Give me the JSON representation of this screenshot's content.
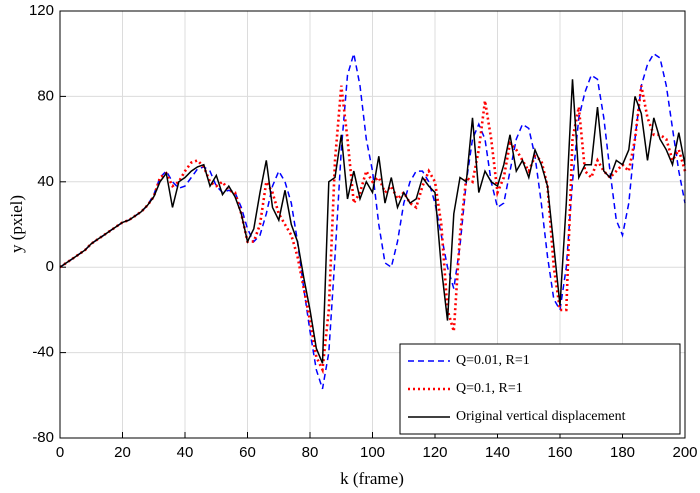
{
  "chart_data": {
    "type": "line",
    "x_label": "k (frame)",
    "y_label": "y (pxiel)",
    "xlim": [
      0,
      200
    ],
    "ylim": [
      -80,
      120
    ],
    "xticks": [
      0,
      20,
      40,
      60,
      80,
      100,
      120,
      140,
      160,
      180,
      200
    ],
    "yticks": [
      -80,
      -40,
      0,
      40,
      80,
      120
    ],
    "grid": true,
    "legend": "lower right",
    "x": [
      0,
      2,
      4,
      6,
      8,
      10,
      12,
      14,
      16,
      18,
      20,
      22,
      24,
      26,
      28,
      30,
      32,
      34,
      36,
      38,
      40,
      42,
      44,
      46,
      48,
      50,
      52,
      54,
      56,
      58,
      60,
      62,
      64,
      66,
      68,
      70,
      72,
      74,
      76,
      78,
      80,
      82,
      84,
      86,
      88,
      90,
      92,
      94,
      96,
      98,
      100,
      102,
      104,
      106,
      108,
      110,
      112,
      114,
      116,
      118,
      120,
      122,
      124,
      126,
      128,
      130,
      132,
      134,
      136,
      138,
      140,
      142,
      144,
      146,
      148,
      150,
      152,
      154,
      156,
      158,
      160,
      162,
      164,
      166,
      168,
      170,
      172,
      174,
      176,
      178,
      180,
      182,
      184,
      186,
      188,
      190,
      192,
      194,
      196,
      198,
      200
    ],
    "series": [
      {
        "name": "Q=0.01, R=1",
        "color": "#0000ff",
        "dash": "6,4",
        "values": [
          0,
          2,
          4,
          6,
          8,
          11,
          13,
          15,
          17,
          19,
          21,
          22,
          24,
          26,
          29,
          34,
          42,
          45,
          40,
          37,
          38,
          42,
          46,
          47,
          45,
          38,
          35,
          36,
          35,
          28,
          18,
          12,
          15,
          25,
          38,
          45,
          40,
          30,
          12,
          -10,
          -30,
          -48,
          -57,
          -40,
          5,
          55,
          90,
          100,
          85,
          60,
          45,
          20,
          2,
          0,
          12,
          30,
          40,
          45,
          45,
          40,
          30,
          15,
          0,
          -10,
          10,
          40,
          60,
          67,
          60,
          40,
          28,
          30,
          45,
          60,
          67,
          65,
          52,
          30,
          5,
          -15,
          -20,
          0,
          40,
          70,
          82,
          90,
          88,
          70,
          45,
          22,
          15,
          30,
          60,
          85,
          95,
          100,
          98,
          85,
          65,
          45,
          30
        ]
      },
      {
        "name": "Q=0.1, R=1",
        "color": "#ff0000",
        "dash": "2,3",
        "values": [
          0,
          2,
          4,
          6,
          8,
          11,
          13,
          15,
          17,
          19,
          21,
          22,
          24,
          26,
          29,
          33,
          42,
          44,
          38,
          40,
          45,
          49,
          50,
          47,
          40,
          38,
          40,
          36,
          35,
          25,
          12,
          12,
          20,
          40,
          35,
          25,
          20,
          15,
          5,
          -10,
          -25,
          -42,
          -48,
          -20,
          50,
          85,
          60,
          30,
          35,
          45,
          40,
          42,
          35,
          38,
          32,
          35,
          30,
          28,
          38,
          45,
          40,
          20,
          -20,
          -30,
          15,
          42,
          40,
          55,
          78,
          60,
          35,
          42,
          58,
          55,
          50,
          45,
          52,
          50,
          38,
          0,
          -20,
          -20,
          60,
          75,
          45,
          42,
          50,
          45,
          42,
          45,
          48,
          45,
          60,
          85,
          70,
          62,
          62,
          60,
          50,
          55,
          45
        ]
      },
      {
        "name": "Original vertical displacement",
        "color": "#000000",
        "dash": "",
        "values": [
          0,
          2,
          4,
          6,
          8,
          11,
          13,
          15,
          17,
          19,
          21,
          22,
          24,
          26,
          29,
          33,
          40,
          44,
          28,
          40,
          42,
          45,
          47,
          48,
          38,
          43,
          34,
          38,
          33,
          25,
          12,
          18,
          35,
          50,
          28,
          22,
          36,
          20,
          12,
          -5,
          -20,
          -38,
          -45,
          40,
          42,
          62,
          32,
          45,
          32,
          40,
          35,
          52,
          30,
          42,
          28,
          35,
          30,
          32,
          42,
          38,
          35,
          0,
          -25,
          25,
          42,
          40,
          70,
          35,
          45,
          40,
          38,
          48,
          62,
          45,
          50,
          42,
          55,
          48,
          38,
          10,
          -18,
          30,
          88,
          42,
          48,
          48,
          75,
          45,
          42,
          50,
          48,
          55,
          80,
          72,
          50,
          70,
          60,
          55,
          48,
          63,
          48
        ]
      }
    ]
  }
}
